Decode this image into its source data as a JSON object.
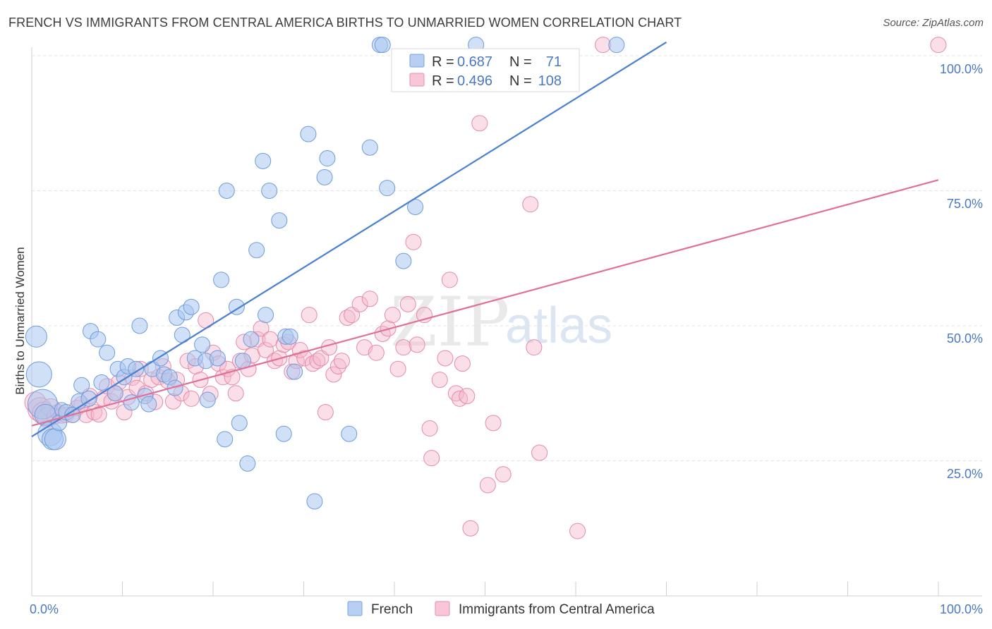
{
  "title": "FRENCH VS IMMIGRANTS FROM CENTRAL AMERICA BIRTHS TO UNMARRIED WOMEN CORRELATION CHART",
  "source": "Source: ZipAtlas.com",
  "watermark": {
    "zip": "ZIP",
    "atlas": "atlas"
  },
  "colors": {
    "blue": "#4a7fd1",
    "blue_fill": "#a9c6ef",
    "pink": "#e07097",
    "pink_fill": "#f5b9cc",
    "tick_text": "#4a78c2"
  },
  "legend": {
    "blue": {
      "r_label": "R =",
      "r_value": "0.687",
      "n_label": "N =",
      "n_value": "71"
    },
    "pink": {
      "r_label": "R =",
      "r_value": "0.496",
      "n_label": "N =",
      "n_value": "108"
    }
  },
  "bottom_legend": {
    "french": "French",
    "immigrants": "Immigrants from Central America"
  },
  "chart_data": {
    "type": "scatter",
    "title": "FRENCH VS IMMIGRANTS FROM CENTRAL AMERICA BIRTHS TO UNMARRIED WOMEN CORRELATION CHART",
    "xlabel": "",
    "ylabel": "Births to Unmarried Women",
    "xlim": [
      0,
      100
    ],
    "ylim": [
      0,
      100
    ],
    "x_ticks_labels": [
      "0.0%",
      "100.0%"
    ],
    "y_ticks": [
      25,
      50,
      75,
      100
    ],
    "y_ticks_labels": [
      "25.0%",
      "50.0%",
      "75.0%",
      "100.0%"
    ],
    "grid": true,
    "legend_position": "top-center",
    "series": [
      {
        "name": "French",
        "r": 0.687,
        "n": 71,
        "trend": [
          [
            0,
            29.5
          ],
          [
            70,
            102.5
          ]
        ],
        "points": [
          [
            0.5,
            48,
            22
          ],
          [
            0.8,
            41,
            28
          ],
          [
            1.2,
            35.5,
            34
          ],
          [
            1.5,
            33.5,
            22
          ],
          [
            2.0,
            30,
            26
          ],
          [
            2.3,
            29,
            22
          ],
          [
            2.6,
            29,
            22
          ],
          [
            3.0,
            32,
            14
          ],
          [
            3.3,
            34.5,
            12
          ],
          [
            3.8,
            34,
            14
          ],
          [
            4.5,
            33.5,
            14
          ],
          [
            5.2,
            36,
            14
          ],
          [
            5.5,
            39,
            14
          ],
          [
            6.3,
            36.5,
            14
          ],
          [
            6.5,
            49,
            14
          ],
          [
            7.3,
            47.5,
            14
          ],
          [
            7.7,
            39.5,
            14
          ],
          [
            8.3,
            45,
            14
          ],
          [
            9.2,
            37.5,
            14
          ],
          [
            9.5,
            42,
            14
          ],
          [
            10.2,
            40.5,
            14
          ],
          [
            10.6,
            42.5,
            14
          ],
          [
            11.0,
            35.8,
            14
          ],
          [
            11.5,
            42,
            14
          ],
          [
            11.9,
            50,
            14
          ],
          [
            12.5,
            37,
            14
          ],
          [
            12.9,
            35.5,
            14
          ],
          [
            13.3,
            42,
            14
          ],
          [
            14.2,
            44,
            14
          ],
          [
            14.6,
            41,
            14
          ],
          [
            15.2,
            40.5,
            14
          ],
          [
            15.8,
            38.5,
            14
          ],
          [
            16.0,
            51.5,
            14
          ],
          [
            16.6,
            48.3,
            14
          ],
          [
            17.0,
            52.5,
            14
          ],
          [
            17.6,
            53.5,
            14
          ],
          [
            18.0,
            44,
            14
          ],
          [
            18.8,
            46.5,
            14
          ],
          [
            19.2,
            43.5,
            14
          ],
          [
            19.4,
            36.3,
            14
          ],
          [
            20.5,
            44,
            14
          ],
          [
            20.9,
            58.5,
            14
          ],
          [
            21.3,
            29,
            14
          ],
          [
            21.5,
            75,
            14
          ],
          [
            22.6,
            53.5,
            14
          ],
          [
            22.9,
            32,
            14
          ],
          [
            23.3,
            43.5,
            14
          ],
          [
            23.8,
            24.5,
            14
          ],
          [
            24.2,
            47.5,
            14
          ],
          [
            24.8,
            64,
            14
          ],
          [
            25.5,
            80.5,
            14
          ],
          [
            25.8,
            52,
            14
          ],
          [
            26.2,
            75,
            14
          ],
          [
            27.3,
            69.5,
            14
          ],
          [
            27.8,
            30,
            14
          ],
          [
            28.0,
            48,
            14
          ],
          [
            28.5,
            48,
            14
          ],
          [
            29.0,
            41.5,
            14
          ],
          [
            30.5,
            85.5,
            14
          ],
          [
            31.2,
            17.5,
            14
          ],
          [
            32.3,
            77.5,
            14
          ],
          [
            32.6,
            81,
            14
          ],
          [
            35.0,
            30,
            14
          ],
          [
            37.3,
            83,
            14
          ],
          [
            38.4,
            102,
            14
          ],
          [
            38.7,
            102,
            14
          ],
          [
            39.2,
            75.5,
            14
          ],
          [
            41.0,
            62,
            14
          ],
          [
            42.3,
            72,
            14
          ],
          [
            64.5,
            102,
            14
          ],
          [
            49.0,
            102,
            14
          ]
        ]
      },
      {
        "name": "Immigrants from Central America",
        "r": 0.496,
        "n": 108,
        "trend": [
          [
            0,
            31.5
          ],
          [
            100,
            77
          ]
        ],
        "points": [
          [
            0.4,
            35.8,
            22
          ],
          [
            0.9,
            34.5,
            26
          ],
          [
            1.3,
            33.8,
            24
          ],
          [
            1.7,
            33,
            20
          ],
          [
            2.1,
            34.8,
            18
          ],
          [
            2.5,
            33.2,
            14
          ],
          [
            2.9,
            34,
            14
          ],
          [
            3.3,
            33.4,
            14
          ],
          [
            3.8,
            33.5,
            14
          ],
          [
            4.5,
            33.5,
            14
          ],
          [
            5.0,
            34.8,
            14
          ],
          [
            5.5,
            35.5,
            14
          ],
          [
            6.0,
            33.5,
            14
          ],
          [
            6.4,
            37,
            14
          ],
          [
            6.9,
            34,
            14
          ],
          [
            7.4,
            33.6,
            14
          ],
          [
            7.9,
            36.5,
            14
          ],
          [
            8.3,
            38.8,
            14
          ],
          [
            8.8,
            36,
            14
          ],
          [
            9.2,
            37.5,
            14
          ],
          [
            9.6,
            39.5,
            14
          ],
          [
            10.2,
            34,
            14
          ],
          [
            10.6,
            36.8,
            14
          ],
          [
            11.1,
            40.4,
            14
          ],
          [
            11.6,
            38.5,
            14
          ],
          [
            12.0,
            42,
            14
          ],
          [
            12.6,
            37.5,
            14
          ],
          [
            13.2,
            40,
            14
          ],
          [
            13.6,
            35.9,
            14
          ],
          [
            14.0,
            40.5,
            14
          ],
          [
            14.5,
            42.5,
            14
          ],
          [
            15.0,
            39.8,
            14
          ],
          [
            15.6,
            36,
            14
          ],
          [
            16.0,
            40,
            14
          ],
          [
            16.5,
            37.5,
            14
          ],
          [
            17.2,
            43.5,
            14
          ],
          [
            17.6,
            36.5,
            14
          ],
          [
            18.1,
            42.5,
            14
          ],
          [
            18.6,
            40,
            14
          ],
          [
            19.2,
            51,
            14
          ],
          [
            19.7,
            37.4,
            14
          ],
          [
            20.0,
            45,
            14
          ],
          [
            20.6,
            43,
            14
          ],
          [
            21.1,
            40.5,
            14
          ],
          [
            21.6,
            42,
            14
          ],
          [
            22.1,
            40.5,
            14
          ],
          [
            22.5,
            37.5,
            14
          ],
          [
            23.0,
            43.5,
            14
          ],
          [
            23.4,
            47,
            14
          ],
          [
            23.9,
            42,
            14
          ],
          [
            24.3,
            44.5,
            14
          ],
          [
            24.9,
            47.5,
            14
          ],
          [
            25.3,
            49.5,
            14
          ],
          [
            25.8,
            45.5,
            14
          ],
          [
            26.3,
            47.5,
            14
          ],
          [
            26.8,
            43.5,
            14
          ],
          [
            27.3,
            44,
            14
          ],
          [
            27.8,
            46.5,
            14
          ],
          [
            28.3,
            47,
            14
          ],
          [
            28.7,
            41.5,
            14
          ],
          [
            29.2,
            43.5,
            14
          ],
          [
            29.6,
            45.5,
            14
          ],
          [
            30.1,
            44,
            14
          ],
          [
            30.6,
            52,
            14
          ],
          [
            31.0,
            43,
            14
          ],
          [
            31.5,
            43.5,
            14
          ],
          [
            31.9,
            44,
            14
          ],
          [
            32.4,
            34,
            14
          ],
          [
            32.8,
            46,
            14
          ],
          [
            33.3,
            41,
            14
          ],
          [
            33.8,
            42.5,
            14
          ],
          [
            34.2,
            43.5,
            14
          ],
          [
            34.8,
            51.5,
            14
          ],
          [
            35.3,
            52,
            14
          ],
          [
            36.2,
            54,
            14
          ],
          [
            36.7,
            46,
            14
          ],
          [
            37.3,
            55,
            14
          ],
          [
            38.0,
            45,
            14
          ],
          [
            38.7,
            48.5,
            14
          ],
          [
            39.3,
            49.5,
            14
          ],
          [
            39.8,
            52,
            14
          ],
          [
            40.4,
            42,
            14
          ],
          [
            41.0,
            46,
            14
          ],
          [
            41.5,
            54,
            14
          ],
          [
            42.1,
            65.5,
            14
          ],
          [
            42.5,
            46.5,
            14
          ],
          [
            43.3,
            52,
            14
          ],
          [
            43.9,
            31,
            14
          ],
          [
            44.1,
            25.5,
            14
          ],
          [
            45.0,
            40,
            14
          ],
          [
            45.6,
            44,
            14
          ],
          [
            46.1,
            58.5,
            14
          ],
          [
            46.8,
            37.5,
            14
          ],
          [
            47.2,
            36.5,
            14
          ],
          [
            47.5,
            43,
            14
          ],
          [
            48.0,
            37,
            14
          ],
          [
            48.4,
            12.5,
            14
          ],
          [
            49.4,
            87.5,
            14
          ],
          [
            50.3,
            20.5,
            14
          ],
          [
            50.9,
            32,
            14
          ],
          [
            52.0,
            22.5,
            14
          ],
          [
            55.0,
            72.5,
            14
          ],
          [
            55.4,
            46,
            14
          ],
          [
            56.0,
            26.5,
            14
          ],
          [
            60.2,
            12,
            14
          ],
          [
            63.0,
            102,
            14
          ],
          [
            100,
            102,
            14
          ]
        ]
      }
    ]
  }
}
